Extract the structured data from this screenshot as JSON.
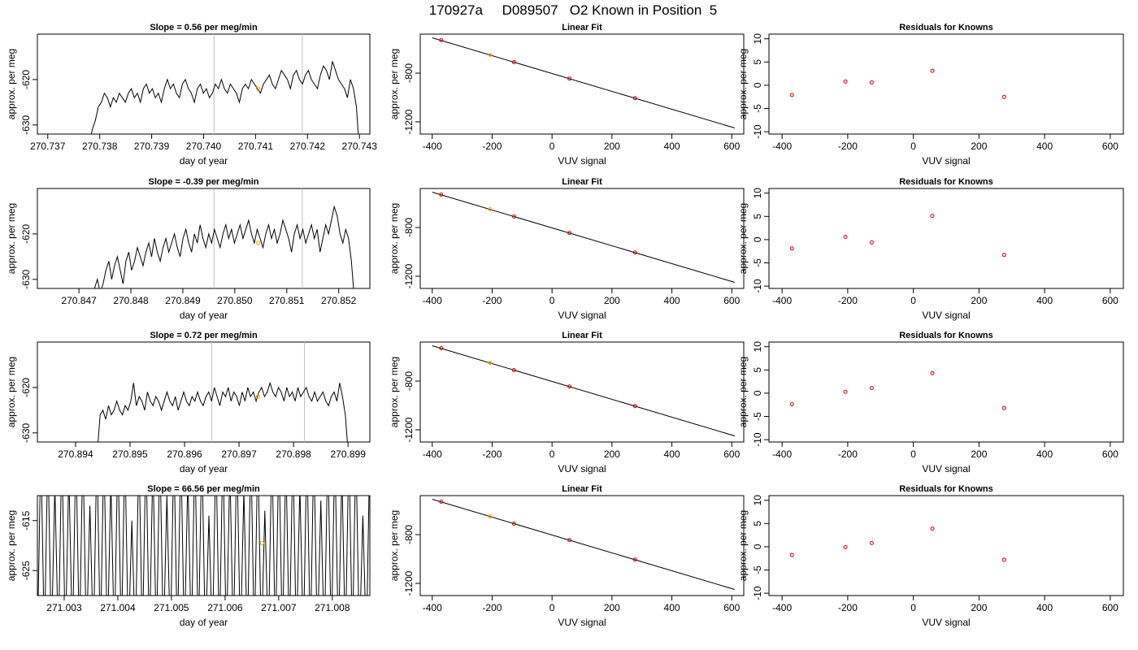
{
  "figure_title": "170927a     D089507   O2 Known in Position  5",
  "chart_data": [
    {
      "type": "line",
      "title": "Slope =  0.56  per meg/min",
      "xlabel": "day of year",
      "ylabel": "approx. per meg",
      "xlim": [
        270.7368,
        270.7432
      ],
      "ylim": [
        -632,
        -610
      ],
      "xticks": [
        270.737,
        270.738,
        270.739,
        270.74,
        270.741,
        270.742,
        270.743
      ],
      "xtick_labels": [
        "270.737",
        "270.738",
        "270.739",
        "270.740",
        "270.741",
        "270.742",
        "270.743"
      ],
      "yticks": [
        -620,
        -630
      ],
      "ytick_labels": [
        "-620",
        "-630"
      ],
      "vlines": [
        270.7402,
        270.7419
      ],
      "highlight": {
        "x": 270.74105,
        "y": -622
      },
      "series": [
        {
          "x_start": 270.7378,
          "x_end": 270.743,
          "values": [
            -634,
            -631,
            -629,
            -626,
            -625,
            -623,
            -624,
            -626,
            -624,
            -625,
            -623,
            -624,
            -625,
            -623,
            -622,
            -624,
            -623,
            -625,
            -622,
            -621,
            -623,
            -622,
            -624,
            -623,
            -625,
            -622,
            -620,
            -622,
            -621,
            -623,
            -624,
            -621,
            -620,
            -622,
            -623,
            -625,
            -622,
            -621,
            -623,
            -622,
            -624,
            -623,
            -621,
            -622,
            -620,
            -622,
            -623,
            -621,
            -622,
            -623,
            -625,
            -622,
            -621,
            -622,
            -620,
            -621,
            -622,
            -623,
            -621,
            -620,
            -619,
            -621,
            -622,
            -620,
            -618,
            -619,
            -620,
            -622,
            -619,
            -618,
            -620,
            -621,
            -619,
            -618,
            -620,
            -621,
            -622,
            -619,
            -617,
            -618,
            -620,
            -616,
            -618,
            -620,
            -621,
            -622,
            -624,
            -620,
            -622,
            -626,
            -636
          ]
        }
      ]
    },
    {
      "type": "line",
      "title": "Linear Fit",
      "xlabel": "VUV signal",
      "ylabel": "approx. per meg",
      "xlim": [
        -440,
        640
      ],
      "ylim": [
        -1300,
        -480
      ],
      "xticks": [
        -400,
        -200,
        0,
        200,
        400,
        600
      ],
      "xtick_labels": [
        "-400",
        "-200",
        "0",
        "200",
        "400",
        "600"
      ],
      "yticks": [
        -800,
        -1200
      ],
      "ytick_labels": [
        "-800",
        "-1200"
      ],
      "line": {
        "x": [
          -400,
          610
        ],
        "y": [
          -510,
          -1250
        ]
      },
      "points": {
        "x": [
          -370,
          -207,
          -127,
          58,
          277
        ],
        "y": [
          -530,
          -650,
          -710,
          -845,
          -1005
        ]
      },
      "highlight_index": 1
    },
    {
      "type": "scatter",
      "title": "Residuals for Knowns",
      "xlabel": "VUV signal",
      "ylabel": "approx. per meg",
      "xlim": [
        -440,
        640
      ],
      "ylim": [
        -10.5,
        11
      ],
      "xticks": [
        -400,
        -200,
        0,
        200,
        400,
        600
      ],
      "xtick_labels": [
        "-400",
        "-200",
        "0",
        "200",
        "400",
        "600"
      ],
      "yticks": [
        10,
        5,
        0,
        -5,
        -10
      ],
      "ytick_labels": [
        "10",
        "5",
        "0",
        "-5",
        "-10"
      ],
      "points": {
        "x": [
          -370,
          -207,
          -127,
          58,
          277
        ],
        "y": [
          -2.1,
          0.8,
          0.6,
          3.1,
          -2.5
        ]
      }
    },
    {
      "type": "line",
      "title": "Slope =  -0.39  per meg/min",
      "xlabel": "day of year",
      "ylabel": "approx. per meg",
      "xlim": [
        270.8462,
        270.8526
      ],
      "ylim": [
        -632,
        -610
      ],
      "xticks": [
        270.847,
        270.848,
        270.849,
        270.85,
        270.851,
        270.852
      ],
      "xtick_labels": [
        "270.847",
        "270.848",
        "270.849",
        "270.850",
        "270.851",
        "270.852"
      ],
      "yticks": [
        -620,
        -630
      ],
      "ytick_labels": [
        "-620",
        "-630"
      ],
      "vlines": [
        270.8496,
        270.8513
      ],
      "highlight": {
        "x": 270.85045,
        "y": -622
      },
      "series": [
        {
          "x_start": 270.8473,
          "x_end": 270.8523,
          "values": [
            -632,
            -630,
            -633,
            -631,
            -628,
            -626,
            -630,
            -627,
            -625,
            -628,
            -631,
            -626,
            -624,
            -628,
            -626,
            -623,
            -625,
            -627,
            -624,
            -622,
            -625,
            -621,
            -624,
            -626,
            -623,
            -621,
            -624,
            -622,
            -620,
            -623,
            -625,
            -621,
            -619,
            -622,
            -624,
            -620,
            -622,
            -618,
            -621,
            -623,
            -620,
            -622,
            -619,
            -621,
            -623,
            -620,
            -618,
            -621,
            -619,
            -622,
            -620,
            -618,
            -621,
            -619,
            -617,
            -620,
            -622,
            -619,
            -621,
            -623,
            -620,
            -618,
            -621,
            -619,
            -622,
            -620,
            -617,
            -619,
            -621,
            -624,
            -620,
            -618,
            -621,
            -619,
            -622,
            -620,
            -618,
            -621,
            -619,
            -624,
            -621,
            -618,
            -620,
            -617,
            -614,
            -616,
            -620,
            -622,
            -619,
            -621,
            -626,
            -634
          ]
        }
      ]
    },
    {
      "type": "line",
      "title": "Linear Fit",
      "xlabel": "VUV signal",
      "ylabel": "approx. per meg",
      "xlim": [
        -440,
        640
      ],
      "ylim": [
        -1300,
        -480
      ],
      "xticks": [
        -400,
        -200,
        0,
        200,
        400,
        600
      ],
      "xtick_labels": [
        "-400",
        "-200",
        "0",
        "200",
        "400",
        "600"
      ],
      "yticks": [
        -800,
        -1200
      ],
      "ytick_labels": [
        "-800",
        "-1200"
      ],
      "line": {
        "x": [
          -400,
          610
        ],
        "y": [
          -510,
          -1250
        ]
      },
      "points": {
        "x": [
          -370,
          -207,
          -127,
          58,
          277
        ],
        "y": [
          -530,
          -650,
          -710,
          -845,
          -1005
        ]
      },
      "highlight_index": 1
    },
    {
      "type": "scatter",
      "title": "Residuals for Knowns",
      "xlabel": "VUV signal",
      "ylabel": "approx. per meg",
      "xlim": [
        -440,
        640
      ],
      "ylim": [
        -10.5,
        11
      ],
      "xticks": [
        -400,
        -200,
        0,
        200,
        400,
        600
      ],
      "xtick_labels": [
        "-400",
        "-200",
        "0",
        "200",
        "400",
        "600"
      ],
      "yticks": [
        10,
        5,
        0,
        -5,
        -10
      ],
      "ytick_labels": [
        "10",
        "5",
        "0",
        "-5",
        "-10"
      ],
      "points": {
        "x": [
          -370,
          -207,
          -127,
          58,
          277
        ],
        "y": [
          -1.9,
          0.6,
          -0.6,
          5.1,
          -3.3
        ]
      }
    },
    {
      "type": "line",
      "title": "Slope =  0.72  per meg/min",
      "xlabel": "day of year",
      "ylabel": "approx. per meg",
      "xlim": [
        270.8933,
        270.8994
      ],
      "ylim": [
        -632,
        -610
      ],
      "xticks": [
        270.894,
        270.895,
        270.896,
        270.897,
        270.898,
        270.899
      ],
      "xtick_labels": [
        "270.894",
        "270.895",
        "270.896",
        "270.897",
        "270.898",
        "270.899"
      ],
      "yticks": [
        -620,
        -630
      ],
      "ytick_labels": [
        "-620",
        "-630"
      ],
      "vlines": [
        270.8965,
        270.8982
      ],
      "highlight": {
        "x": 270.89735,
        "y": -622
      },
      "series": [
        {
          "x_start": 270.8944,
          "x_end": 270.899,
          "values": [
            -634,
            -626,
            -625,
            -627,
            -624,
            -626,
            -625,
            -623,
            -625,
            -626,
            -624,
            -625,
            -623,
            -619,
            -624,
            -622,
            -623,
            -625,
            -621,
            -623,
            -624,
            -622,
            -623,
            -625,
            -623,
            -621,
            -623,
            -624,
            -622,
            -625,
            -623,
            -621,
            -623,
            -624,
            -622,
            -623,
            -621,
            -623,
            -624,
            -622,
            -621,
            -623,
            -620,
            -622,
            -624,
            -621,
            -622,
            -620,
            -623,
            -621,
            -622,
            -624,
            -621,
            -623,
            -620,
            -622,
            -621,
            -623,
            -621,
            -620,
            -622,
            -621,
            -619,
            -621,
            -622,
            -620,
            -621,
            -623,
            -620,
            -622,
            -621,
            -623,
            -620,
            -622,
            -621,
            -620,
            -622,
            -623,
            -621,
            -623,
            -622,
            -621,
            -623,
            -624,
            -622,
            -621,
            -623,
            -619,
            -622,
            -626,
            -634
          ]
        }
      ]
    },
    {
      "type": "line",
      "title": "Linear Fit",
      "xlabel": "VUV signal",
      "ylabel": "approx. per meg",
      "xlim": [
        -440,
        640
      ],
      "ylim": [
        -1300,
        -480
      ],
      "xticks": [
        -400,
        -200,
        0,
        200,
        400,
        600
      ],
      "xtick_labels": [
        "-400",
        "-200",
        "0",
        "200",
        "400",
        "600"
      ],
      "yticks": [
        -800,
        -1200
      ],
      "ytick_labels": [
        "-800",
        "-1200"
      ],
      "line": {
        "x": [
          -400,
          610
        ],
        "y": [
          -510,
          -1250
        ]
      },
      "points": {
        "x": [
          -370,
          -207,
          -127,
          58,
          277
        ],
        "y": [
          -530,
          -650,
          -710,
          -845,
          -1005
        ]
      },
      "highlight_index": 1
    },
    {
      "type": "scatter",
      "title": "Residuals for Knowns",
      "xlabel": "VUV signal",
      "ylabel": "approx. per meg",
      "xlim": [
        -440,
        640
      ],
      "ylim": [
        -10.5,
        11
      ],
      "xticks": [
        -400,
        -200,
        0,
        200,
        400,
        600
      ],
      "xtick_labels": [
        "-400",
        "-200",
        "0",
        "200",
        "400",
        "600"
      ],
      "yticks": [
        10,
        5,
        0,
        -5,
        -10
      ],
      "ytick_labels": [
        "10",
        "5",
        "0",
        "-5",
        "-10"
      ],
      "points": {
        "x": [
          -370,
          -207,
          -127,
          58,
          277
        ],
        "y": [
          -2.4,
          0.3,
          1.1,
          4.3,
          -3.2
        ]
      }
    },
    {
      "type": "line",
      "title": "Slope =  66.56  per meg/min",
      "xlabel": "day of year",
      "ylabel": "approx. per meg",
      "xlim": [
        271.0025,
        271.0087
      ],
      "ylim": [
        -630,
        -610
      ],
      "xticks": [
        271.003,
        271.004,
        271.005,
        271.006,
        271.007,
        271.008
      ],
      "xtick_labels": [
        "271.003",
        "271.004",
        "271.005",
        "271.006",
        "271.007",
        "271.008"
      ],
      "yticks": [
        -615,
        -625
      ],
      "ytick_labels": [
        "-615",
        "-625"
      ],
      "vlines": [],
      "highlight": {
        "x": 271.00669,
        "y": -619.5
      },
      "series": [
        {
          "x_start": 271.0025,
          "x_end": 271.0087,
          "values": [
            -640,
            -600,
            -640,
            -600,
            -640,
            -608,
            -640,
            -600,
            -640,
            -605,
            -640,
            -600,
            -640,
            -600,
            -640,
            -612,
            -640,
            -600,
            -640,
            -600,
            -640,
            -607,
            -640,
            -600,
            -640,
            -600,
            -640,
            -615,
            -640,
            -600,
            -640,
            -600,
            -640,
            -603,
            -640,
            -600,
            -640,
            -610,
            -640,
            -600,
            -640,
            -600,
            -640,
            -606,
            -640,
            -600,
            -640,
            -600,
            -640,
            -614,
            -640,
            -600,
            -640,
            -600,
            -640,
            -604,
            -640,
            -600,
            -640,
            -609,
            -640,
            -600,
            -640,
            -600,
            -640,
            -613,
            -640,
            -600,
            -640,
            -600,
            -640,
            -602,
            -640,
            -600,
            -640,
            -608,
            -640,
            -600,
            -640,
            -600,
            -640,
            -611,
            -640,
            -600,
            -640,
            -600,
            -640,
            -605,
            -640,
            -600,
            -640,
            -600,
            -640,
            -614,
            -640,
            -600
          ]
        }
      ]
    },
    {
      "type": "line",
      "title": "Linear Fit",
      "xlabel": "VUV signal",
      "ylabel": "approx. per meg",
      "xlim": [
        -440,
        640
      ],
      "ylim": [
        -1300,
        -480
      ],
      "xticks": [
        -400,
        -200,
        0,
        200,
        400,
        600
      ],
      "xtick_labels": [
        "-400",
        "-200",
        "0",
        "200",
        "400",
        "600"
      ],
      "yticks": [
        -800,
        -1200
      ],
      "ytick_labels": [
        "-800",
        "-1200"
      ],
      "line": {
        "x": [
          -400,
          610
        ],
        "y": [
          -510,
          -1250
        ]
      },
      "points": {
        "x": [
          -370,
          -207,
          -127,
          58,
          277
        ],
        "y": [
          -530,
          -650,
          -710,
          -845,
          -1005
        ]
      },
      "highlight_index": 1
    },
    {
      "type": "scatter",
      "title": "Residuals for Knowns",
      "xlabel": "VUV signal",
      "ylabel": "approx. per meg",
      "xlim": [
        -440,
        640
      ],
      "ylim": [
        -10.5,
        11
      ],
      "xticks": [
        -400,
        -200,
        0,
        200,
        400,
        600
      ],
      "xtick_labels": [
        "-400",
        "-200",
        "0",
        "200",
        "400",
        "600"
      ],
      "yticks": [
        10,
        5,
        0,
        -5,
        -10
      ],
      "ytick_labels": [
        "10",
        "5",
        "0",
        "-5",
        "-10"
      ],
      "points": {
        "x": [
          -370,
          -207,
          -127,
          58,
          277
        ],
        "y": [
          -1.8,
          -0.1,
          0.8,
          3.9,
          -2.8
        ]
      }
    }
  ],
  "colors": {
    "line": "#000000",
    "vline": "#bebebe",
    "highlight": "#ffa500",
    "residual_point": "#cc0000",
    "fit_point": "#cc0000"
  }
}
